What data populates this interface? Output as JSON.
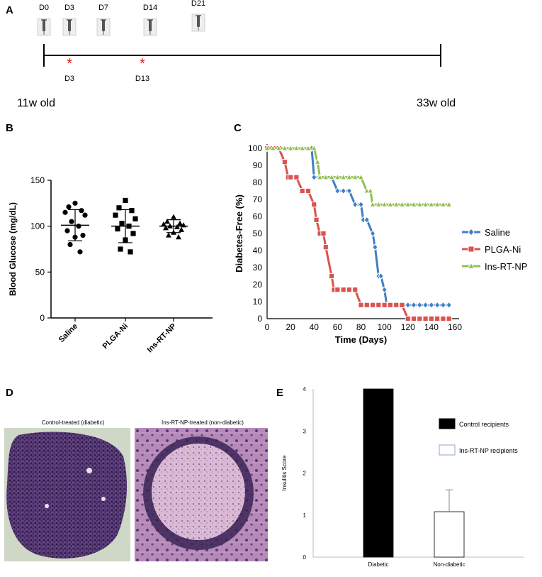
{
  "panel_labels": [
    "A",
    "B",
    "C",
    "D",
    "E"
  ],
  "timeline": {
    "injection_days": [
      "D0",
      "D3",
      "D7",
      "D14",
      "D21"
    ],
    "marker_days": [
      "D3",
      "D13"
    ],
    "start_label": "11w old",
    "end_label": "33w old",
    "marker_color": "#e0201e"
  },
  "chart_data": [
    {
      "panel": "B",
      "type": "scatter",
      "title": "",
      "ylabel": "Blood Glucose (mg/dL)",
      "categories": [
        "Saline",
        "PLGA-Ni",
        "Ins-RT-NP"
      ],
      "yticks": [
        0,
        50,
        100,
        150
      ],
      "ylim": [
        0,
        150
      ],
      "series": [
        {
          "category": "Saline",
          "marker": "circle",
          "values": [
            125,
            121,
            117,
            115,
            112,
            105,
            100,
            95,
            90,
            88,
            80,
            72
          ],
          "mean": 101,
          "sd": 17
        },
        {
          "category": "PLGA-Ni",
          "marker": "square",
          "values": [
            128,
            120,
            117,
            112,
            108,
            103,
            100,
            97,
            92,
            85,
            75,
            72
          ],
          "mean": 100,
          "sd": 18
        },
        {
          "category": "Ins-RT-NP",
          "marker": "triangle",
          "values": [
            110,
            105,
            103,
            102,
            101,
            100,
            99,
            98,
            96,
            93,
            90,
            88
          ],
          "mean": 100,
          "sd": 7
        }
      ]
    },
    {
      "panel": "C",
      "type": "line",
      "title": "",
      "xlabel": "Time (Days)",
      "ylabel": "Diabetes-Free (%)",
      "xticks": [
        0,
        20,
        40,
        60,
        80,
        100,
        120,
        140,
        160
      ],
      "yticks": [
        0,
        10,
        20,
        30,
        40,
        50,
        60,
        70,
        80,
        90,
        100
      ],
      "xlim": [
        0,
        160
      ],
      "ylim": [
        0,
        100
      ],
      "legend_position": "right",
      "series": [
        {
          "name": "Saline",
          "color": "#3f7fc4",
          "marker": "diamond",
          "x": [
            0,
            5,
            10,
            15,
            20,
            25,
            30,
            35,
            38,
            40,
            45,
            50,
            55,
            60,
            65,
            70,
            75,
            80,
            82,
            85,
            90,
            92,
            95,
            97,
            100,
            102,
            105,
            110,
            115,
            120,
            125,
            130,
            135,
            140,
            145,
            150,
            155
          ],
          "y": [
            100,
            100,
            100,
            100,
            100,
            100,
            100,
            100,
            100,
            83,
            83,
            83,
            83,
            75,
            75,
            75,
            67,
            67,
            58,
            58,
            50,
            42,
            25,
            25,
            17,
            8,
            8,
            8,
            8,
            8,
            8,
            8,
            8,
            8,
            8,
            8,
            8
          ]
        },
        {
          "name": "PLGA-Ni",
          "color": "#d9534f",
          "marker": "square",
          "x": [
            0,
            5,
            10,
            15,
            18,
            20,
            25,
            30,
            35,
            40,
            42,
            45,
            48,
            50,
            55,
            57,
            60,
            65,
            70,
            75,
            80,
            85,
            90,
            95,
            100,
            105,
            110,
            115,
            120,
            125,
            130,
            135,
            140,
            145,
            150,
            155
          ],
          "y": [
            100,
            100,
            100,
            92,
            83,
            83,
            83,
            75,
            75,
            67,
            58,
            50,
            50,
            42,
            25,
            17,
            17,
            17,
            17,
            17,
            8,
            8,
            8,
            8,
            8,
            8,
            8,
            8,
            0,
            0,
            0,
            0,
            0,
            0,
            0,
            0
          ]
        },
        {
          "name": "Ins-RT-NP",
          "color": "#92c04f",
          "marker": "triangle",
          "x": [
            0,
            5,
            10,
            15,
            20,
            25,
            30,
            35,
            40,
            43,
            45,
            50,
            55,
            60,
            65,
            70,
            75,
            80,
            85,
            88,
            90,
            95,
            100,
            105,
            110,
            115,
            120,
            125,
            130,
            135,
            140,
            145,
            150,
            155
          ],
          "y": [
            100,
            100,
            100,
            100,
            100,
            100,
            100,
            100,
            100,
            92,
            83,
            83,
            83,
            83,
            83,
            83,
            83,
            83,
            75,
            75,
            67,
            67,
            67,
            67,
            67,
            67,
            67,
            67,
            67,
            67,
            67,
            67,
            67,
            67
          ]
        }
      ]
    },
    {
      "panel": "E",
      "type": "bar",
      "title": "",
      "ylabel": "Insulitis Score",
      "categories": [
        "Diabetic",
        "Non-diabetic"
      ],
      "yticks": [
        0,
        1,
        2,
        3,
        4
      ],
      "ylim": [
        0,
        4
      ],
      "legend_position": "right",
      "series": [
        {
          "name": "Control recipients",
          "category": "Diabetic",
          "value": 4.0,
          "error": 0,
          "fill": "#000000"
        },
        {
          "name": "Ins-RT-NP recipients",
          "category": "Non-diabetic",
          "value": 1.08,
          "error": 0.52,
          "fill": "#ffffff"
        }
      ]
    }
  ],
  "histology": {
    "left_caption": "Control-treated (diabetic)",
    "right_caption": "Ins-RT-NP-treated (non-diabetic)"
  }
}
